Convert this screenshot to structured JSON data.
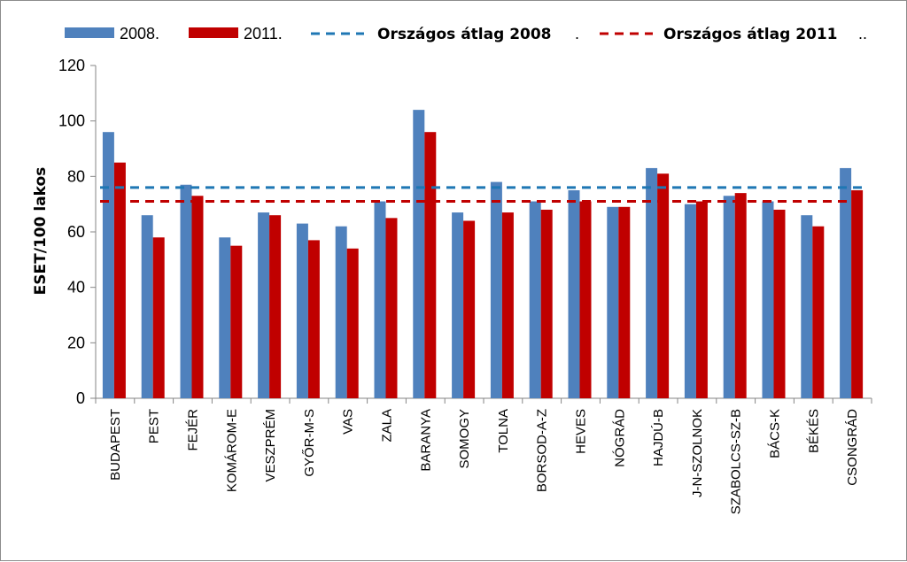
{
  "chart_data": {
    "type": "bar",
    "ylabel": "ESET/100 lakos",
    "ylim": [
      0,
      120
    ],
    "yticks": [
      0,
      20,
      40,
      60,
      80,
      100,
      120
    ],
    "grid": false,
    "legend_position": "top",
    "categories": [
      "BUDAPEST",
      "PEST",
      "FEJÉR",
      "KOMÁROM-E",
      "VESZPRÉM",
      "GYŐR-M-S",
      "VAS",
      "ZALA",
      "BARANYA",
      "SOMOGY",
      "TOLNA",
      "BORSOD-A-Z",
      "HEVES",
      "NÓGRÁD",
      "HAJDÚ-B",
      "J-N-SZOLNOK",
      "SZABOLCS-SZ-B",
      "BÁCS-K",
      "BÉKÉS",
      "CSONGRÁD"
    ],
    "series": [
      {
        "name": "2008.",
        "color": "#4f81bd",
        "values": [
          96,
          66,
          77,
          58,
          67,
          63,
          62,
          71,
          104,
          67,
          78,
          71,
          75,
          69,
          83,
          70,
          73,
          71,
          66,
          83
        ]
      },
      {
        "name": "2011.",
        "color": "#c00000",
        "values": [
          85,
          58,
          73,
          55,
          66,
          57,
          54,
          65,
          96,
          64,
          67,
          68,
          71,
          69,
          81,
          71,
          74,
          68,
          62,
          75
        ]
      }
    ],
    "reference_lines": [
      {
        "name": "Országos átlag 2008",
        "value": 76,
        "color": "#1f77b4",
        "style": "dashed",
        "legend_suffix": "."
      },
      {
        "name": "Országos átlag 2011",
        "value": 71,
        "color": "#c00000",
        "style": "dashed",
        "legend_suffix": ".."
      }
    ]
  }
}
